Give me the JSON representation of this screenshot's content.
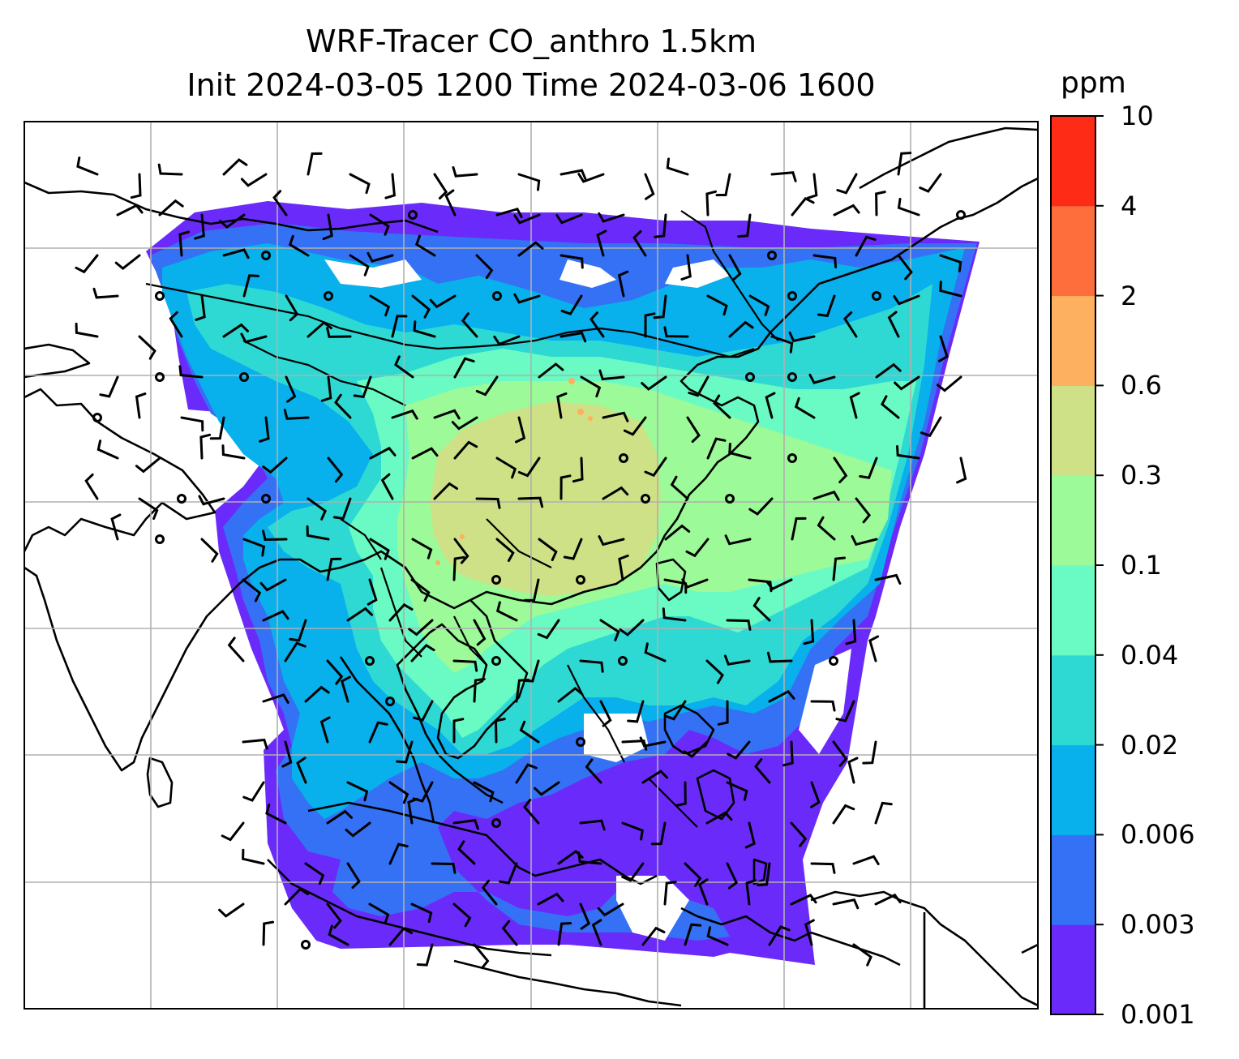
{
  "title": {
    "line1": "WRF-Tracer CO_anthro 1.5km",
    "line2": "Init 2024-03-05 1200 Time 2024-03-06 1600"
  },
  "colorbar": {
    "units": "ppm",
    "ticks": [
      "0.001",
      "0.003",
      "0.006",
      "0.02",
      "0.04",
      "0.1",
      "0.3",
      "0.6",
      "2",
      "4",
      "10"
    ],
    "colors": [
      "#6a2bfa",
      "#3571f4",
      "#08b0ec",
      "#2ed9d4",
      "#69fbc3",
      "#9cfa98",
      "#cfe187",
      "#fdb05f",
      "#fe6d3c",
      "#fe2c17"
    ]
  },
  "map": {
    "grid": "on",
    "layers": [
      "coastlines",
      "country-borders",
      "wind-barbs",
      "calm-circles",
      "co-concentration-fill"
    ]
  }
}
